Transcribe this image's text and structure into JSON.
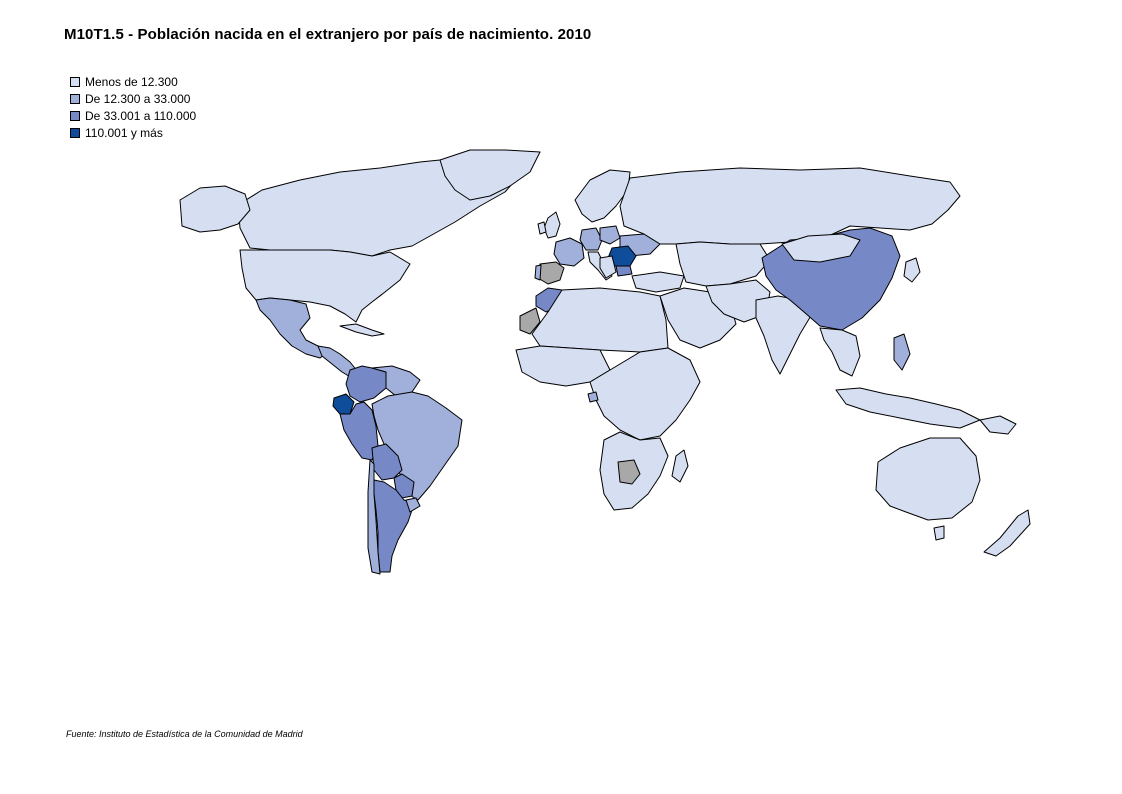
{
  "title": "M10T1.5 - Población nacida en el extranjero por país de nacimiento. 2010",
  "legend": [
    {
      "label": "Menos de 12.300",
      "color": "#d6dff2"
    },
    {
      "label": "De 12.300 a 33.000",
      "color": "#a0b0da"
    },
    {
      "label": "De 33.001 a 110.000",
      "color": "#7688c6"
    },
    {
      "label": "110.001 y más",
      "color": "#0f4c9a"
    }
  ],
  "no_data_color": "#a8a8a8",
  "source": "Fuente: Instituto de Estadística de la Comunidad de Madrid"
}
